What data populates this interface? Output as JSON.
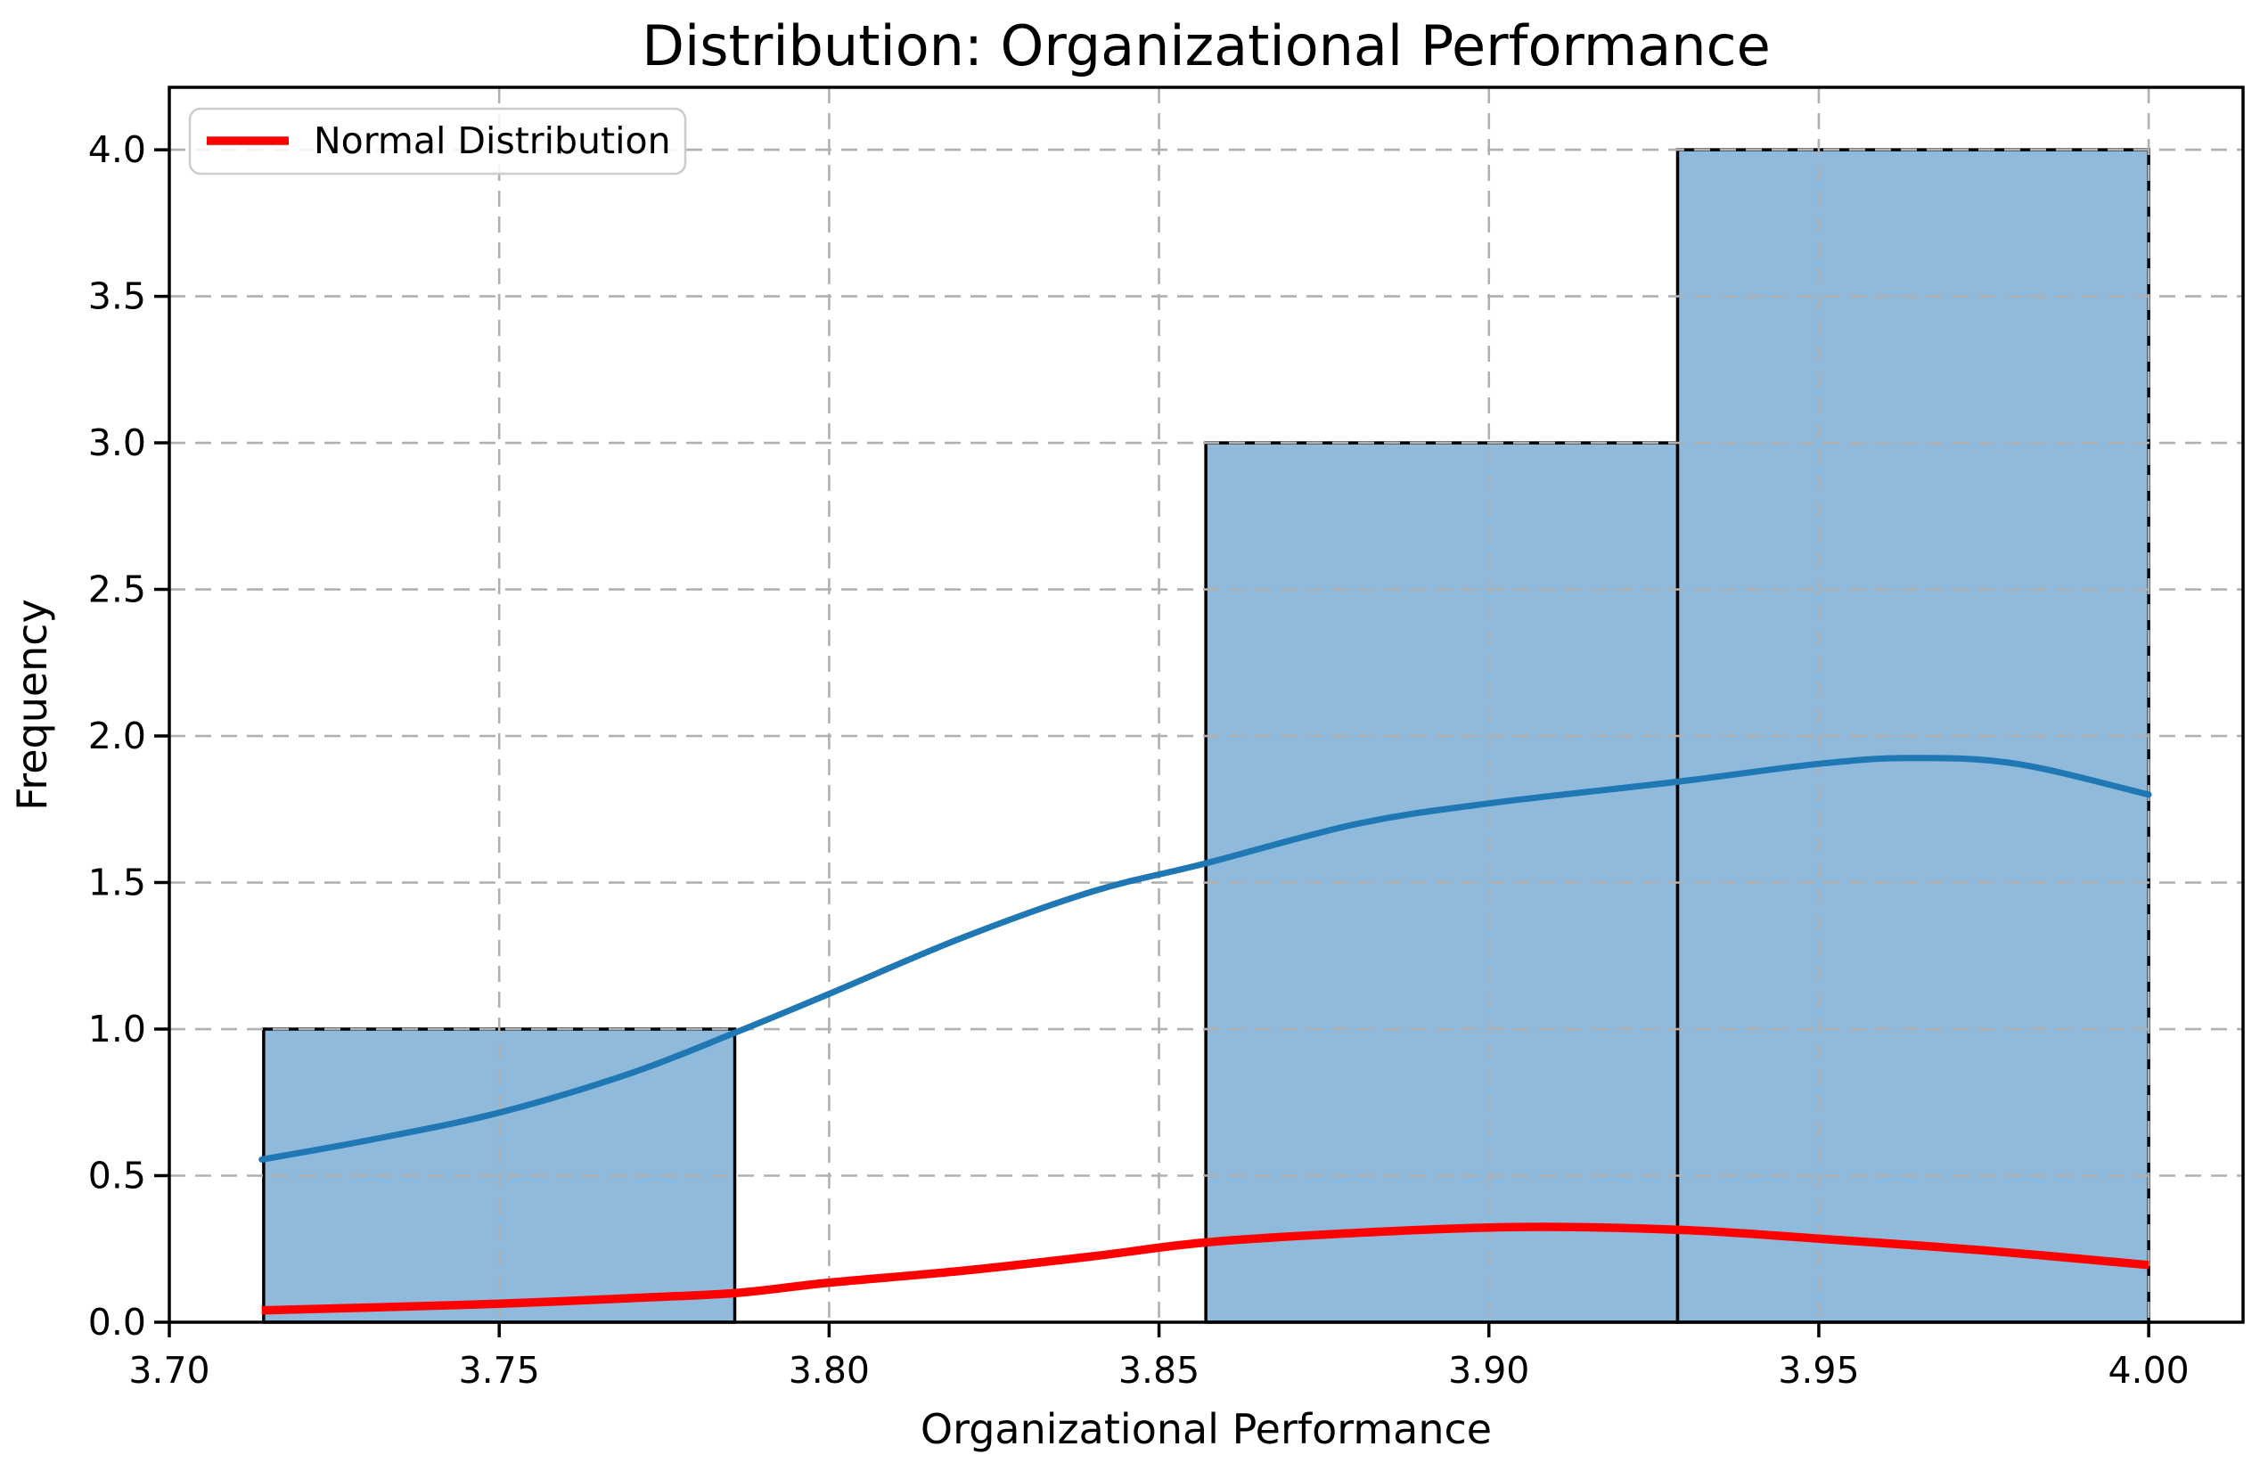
{
  "chart_data": {
    "type": "histogram+line",
    "title": "Distribution: Organizational Performance",
    "xlabel": "Organizational Performance",
    "ylabel": "Frequency",
    "grid": true,
    "legend": {
      "label": "Normal Distribution",
      "position": "upper left",
      "line_color": "#ff0000"
    },
    "xlim": [
      3.7,
      4.0143
    ],
    "ylim": [
      0,
      4.213
    ],
    "x_ticks": {
      "values": [
        3.7,
        3.75,
        3.8,
        3.85,
        3.9,
        3.95,
        4.0
      ],
      "labels": [
        "3.70",
        "3.75",
        "3.80",
        "3.85",
        "3.90",
        "3.95",
        "4.00"
      ]
    },
    "y_ticks": {
      "values": [
        0.0,
        0.5,
        1.0,
        1.5,
        2.0,
        2.5,
        3.0,
        3.5,
        4.0
      ],
      "labels": [
        "0.0",
        "0.5",
        "1.0",
        "1.5",
        "2.0",
        "2.5",
        "3.0",
        "3.5",
        "4.0"
      ]
    },
    "histogram": {
      "bin_edges": [
        3.7143,
        3.7857,
        3.8571,
        3.9286,
        4.0
      ],
      "counts": [
        1,
        0,
        3,
        4
      ],
      "fill_color": "#8fbadc",
      "edge_color": "#000000"
    },
    "kde_curve": {
      "name": "kde",
      "color": "#1f77b4",
      "x": [
        3.714,
        3.73,
        3.75,
        3.77,
        3.786,
        3.8,
        3.82,
        3.84,
        3.857,
        3.88,
        3.9,
        3.929,
        3.95,
        3.964,
        3.98,
        4.0
      ],
      "y": [
        0.555,
        0.62,
        0.715,
        0.85,
        0.99,
        1.12,
        1.31,
        1.47,
        1.565,
        1.7,
        1.77,
        1.845,
        1.905,
        1.925,
        1.905,
        1.8
      ]
    },
    "normal_curve": {
      "name": "normal-distribution",
      "color": "#ff0000",
      "x": [
        3.714,
        3.73,
        3.75,
        3.77,
        3.786,
        3.8,
        3.82,
        3.84,
        3.857,
        3.88,
        3.905,
        3.929,
        3.95,
        3.975,
        4.0
      ],
      "y": [
        0.04,
        0.05,
        0.063,
        0.082,
        0.1,
        0.135,
        0.175,
        0.225,
        0.272,
        0.305,
        0.325,
        0.315,
        0.285,
        0.245,
        0.195
      ]
    },
    "colors": {
      "grid": "#b0b0b0",
      "spine": "#000000",
      "background": "#ffffff",
      "legend_border": "#cccccc"
    }
  }
}
